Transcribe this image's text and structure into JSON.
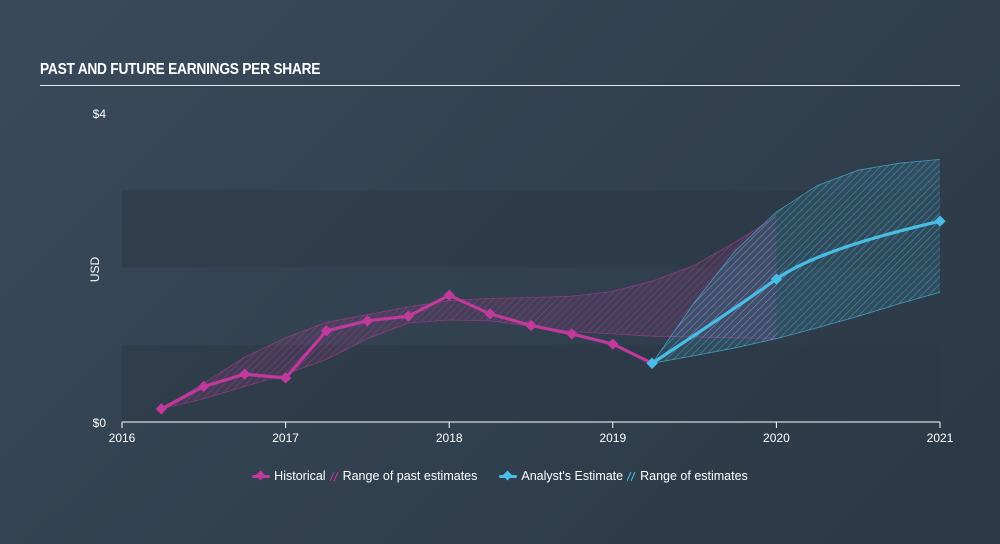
{
  "header": {
    "title": "PAST AND FUTURE EARNINGS PER SHARE"
  },
  "colors": {
    "historical": "#c0399b",
    "estimate": "#49bde5",
    "band": "#2b3846",
    "grid_text": "#ffffff"
  },
  "legend": {
    "historical": "Historical",
    "past_range": "Range of past estimates",
    "estimate": "Analyst's Estimate",
    "estimate_range": "Range of estimates"
  },
  "chart_data": {
    "type": "line",
    "title": "PAST AND FUTURE EARNINGS PER SHARE",
    "ylabel": "USD",
    "xlabel": "",
    "xlim": [
      2016,
      2021
    ],
    "ylim": [
      0,
      4
    ],
    "y_ticks": [
      "$0",
      "$4"
    ],
    "x_ticks": [
      "2016",
      "2017",
      "2018",
      "2019",
      "2020",
      "2021"
    ],
    "grid": false,
    "legend_position": "bottom-center",
    "series": [
      {
        "name": "Historical",
        "x": [
          2016.24,
          2016.5,
          2016.75,
          2017.0,
          2017.25,
          2017.5,
          2017.75,
          2018.0,
          2018.25,
          2018.5,
          2018.75,
          2019.0,
          2019.24
        ],
        "y": [
          0.17,
          0.46,
          0.62,
          0.57,
          1.18,
          1.31,
          1.37,
          1.64,
          1.4,
          1.25,
          1.14,
          1.01,
          0.76
        ]
      },
      {
        "name": "Analyst's Estimate",
        "x": [
          2019.24,
          2020.0,
          2021.0
        ],
        "y": [
          0.76,
          1.85,
          2.6
        ]
      }
    ],
    "past_estimate_range": {
      "name": "Range of past estimates",
      "x": [
        2016.24,
        2016.5,
        2016.75,
        2017.0,
        2017.25,
        2017.5,
        2017.75,
        2018.0,
        2018.25,
        2018.5,
        2018.75,
        2019.0,
        2019.25,
        2019.5,
        2019.75,
        2020.0
      ],
      "upper": [
        0.17,
        0.5,
        0.84,
        1.09,
        1.29,
        1.39,
        1.49,
        1.57,
        1.6,
        1.61,
        1.63,
        1.69,
        1.83,
        2.03,
        2.33,
        2.66
      ],
      "lower": [
        0.17,
        0.3,
        0.46,
        0.62,
        0.81,
        1.08,
        1.28,
        1.32,
        1.31,
        1.24,
        1.17,
        1.14,
        1.11,
        1.1,
        1.09,
        1.08
      ]
    },
    "estimate_range": {
      "name": "Range of estimates",
      "x": [
        2019.24,
        2019.5,
        2019.75,
        2020.0,
        2020.25,
        2020.5,
        2020.75,
        2021.0
      ],
      "upper": [
        0.76,
        1.55,
        2.22,
        2.72,
        3.06,
        3.26,
        3.35,
        3.4
      ],
      "lower": [
        0.76,
        0.86,
        0.96,
        1.08,
        1.22,
        1.37,
        1.53,
        1.68
      ]
    }
  }
}
